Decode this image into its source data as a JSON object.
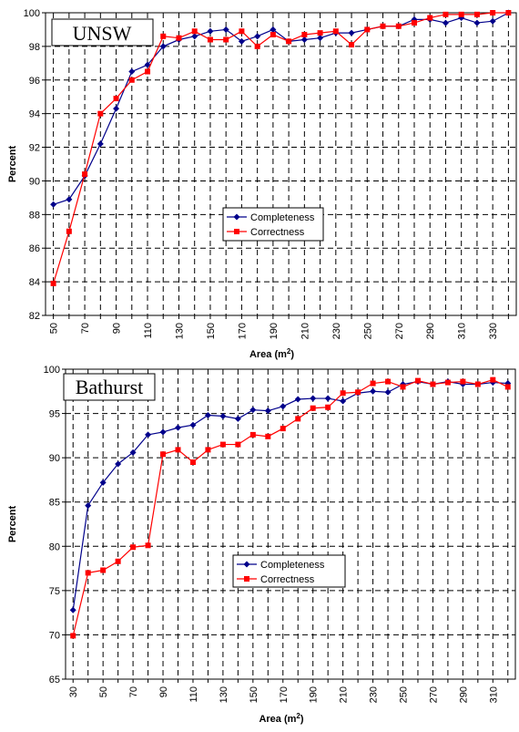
{
  "chart_data": [
    {
      "type": "line",
      "title": "UNSW",
      "xlabel": "Area (m",
      "xlabel_sup": "2",
      "xlabel_close": ")",
      "ylabel": "Percent",
      "ylim": [
        82,
        100
      ],
      "yticks": [
        82,
        84,
        86,
        88,
        90,
        92,
        94,
        96,
        98,
        100
      ],
      "xticks": [
        50,
        70,
        90,
        110,
        130,
        150,
        170,
        190,
        210,
        230,
        250,
        270,
        290,
        310,
        330
      ],
      "xlim": [
        45,
        345
      ],
      "grid": true,
      "legend_position": "center",
      "x": [
        50,
        60,
        70,
        80,
        90,
        100,
        110,
        120,
        130,
        140,
        150,
        160,
        170,
        180,
        190,
        200,
        210,
        220,
        230,
        240,
        250,
        260,
        270,
        280,
        290,
        300,
        310,
        320,
        330,
        340
      ],
      "series": [
        {
          "name": "Completeness",
          "color": "#00008B",
          "marker": "diamond",
          "values": [
            88.6,
            88.9,
            90.3,
            92.2,
            94.3,
            96.5,
            96.9,
            98.0,
            98.4,
            98.6,
            98.9,
            99.0,
            98.3,
            98.6,
            99.0,
            98.3,
            98.4,
            98.5,
            98.8,
            98.8,
            99.0,
            99.2,
            99.2,
            99.6,
            99.6,
            99.4,
            99.7,
            99.4,
            99.5,
            100.0
          ]
        },
        {
          "name": "Correctness",
          "color": "#FF0000",
          "marker": "square",
          "values": [
            83.9,
            87.0,
            90.4,
            94.0,
            94.9,
            96.0,
            96.5,
            98.6,
            98.5,
            98.9,
            98.4,
            98.4,
            98.9,
            98.0,
            98.7,
            98.3,
            98.7,
            98.8,
            98.9,
            98.1,
            99.0,
            99.2,
            99.2,
            99.4,
            99.7,
            99.9,
            99.9,
            99.9,
            100.0,
            100.0
          ]
        }
      ]
    },
    {
      "type": "line",
      "title": "Bathurst",
      "xlabel": "Area (m",
      "xlabel_sup": "2",
      "xlabel_close": ")",
      "ylabel": "Percent",
      "ylim": [
        65,
        100
      ],
      "yticks": [
        65,
        70,
        75,
        80,
        85,
        90,
        95,
        100
      ],
      "xticks": [
        30,
        50,
        70,
        90,
        110,
        130,
        150,
        170,
        190,
        210,
        230,
        250,
        270,
        290,
        310
      ],
      "xlim": [
        25,
        325
      ],
      "grid": true,
      "legend_position": "center-right",
      "x": [
        30,
        40,
        50,
        60,
        70,
        80,
        90,
        100,
        110,
        120,
        130,
        140,
        150,
        160,
        170,
        180,
        190,
        200,
        210,
        220,
        230,
        240,
        250,
        260,
        270,
        280,
        290,
        300,
        310,
        320
      ],
      "series": [
        {
          "name": "Completeness",
          "color": "#00008B",
          "marker": "diamond",
          "values": [
            72.8,
            84.6,
            87.2,
            89.3,
            90.6,
            92.6,
            92.9,
            93.4,
            93.7,
            94.8,
            94.7,
            94.4,
            95.4,
            95.3,
            95.8,
            96.6,
            96.7,
            96.7,
            96.4,
            97.3,
            97.5,
            97.4,
            98.3,
            98.6,
            98.3,
            98.6,
            98.3,
            98.3,
            98.5,
            98.4
          ]
        },
        {
          "name": "Correctness",
          "color": "#FF0000",
          "marker": "square",
          "values": [
            69.9,
            77.0,
            77.3,
            78.3,
            79.9,
            80.1,
            90.4,
            90.9,
            89.5,
            90.9,
            91.5,
            91.5,
            92.6,
            92.4,
            93.3,
            94.4,
            95.6,
            95.7,
            97.3,
            97.4,
            98.4,
            98.6,
            98.0,
            98.7,
            98.3,
            98.5,
            98.6,
            98.3,
            98.8,
            98.0
          ]
        }
      ]
    }
  ]
}
